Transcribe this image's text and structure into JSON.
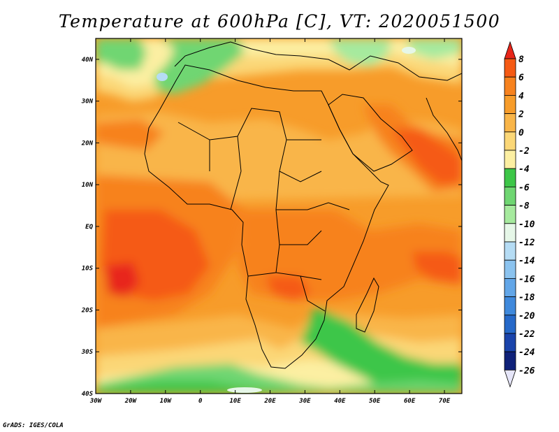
{
  "title": "Temperature at 600hPa [C], VT: 2020051500",
  "credit": "GrADS: IGES/COLA",
  "map": {
    "lon_labels": [
      "30W",
      "20W",
      "10W",
      "0",
      "10E",
      "20E",
      "30E",
      "40E",
      "50E",
      "60E",
      "70E"
    ],
    "lat_labels": [
      "40N",
      "30N",
      "20N",
      "10N",
      "EQ",
      "10S",
      "20S",
      "30S",
      "40S"
    ],
    "lon_range": [
      -30,
      75
    ],
    "lat_range": [
      -40,
      45
    ]
  },
  "colorbar": {
    "labels": [
      "8",
      "6",
      "4",
      "2",
      "0",
      "-2",
      "-4",
      "-6",
      "-8",
      "-10",
      "-12",
      "-14",
      "-16",
      "-18",
      "-20",
      "-22",
      "-24",
      "-26"
    ],
    "colors": [
      "#e8261a",
      "#f55a14",
      "#f7821e",
      "#f79c2a",
      "#f9b548",
      "#fbd777",
      "#fcefa2",
      "#3dc648",
      "#6fd672",
      "#a6ea9e",
      "#e6f7e8",
      "#b5dcf4",
      "#8bc3ef",
      "#62a6e8",
      "#3f89dc",
      "#2669c9",
      "#1a44ab",
      "#0f2179",
      "#e6e6f9"
    ]
  }
}
